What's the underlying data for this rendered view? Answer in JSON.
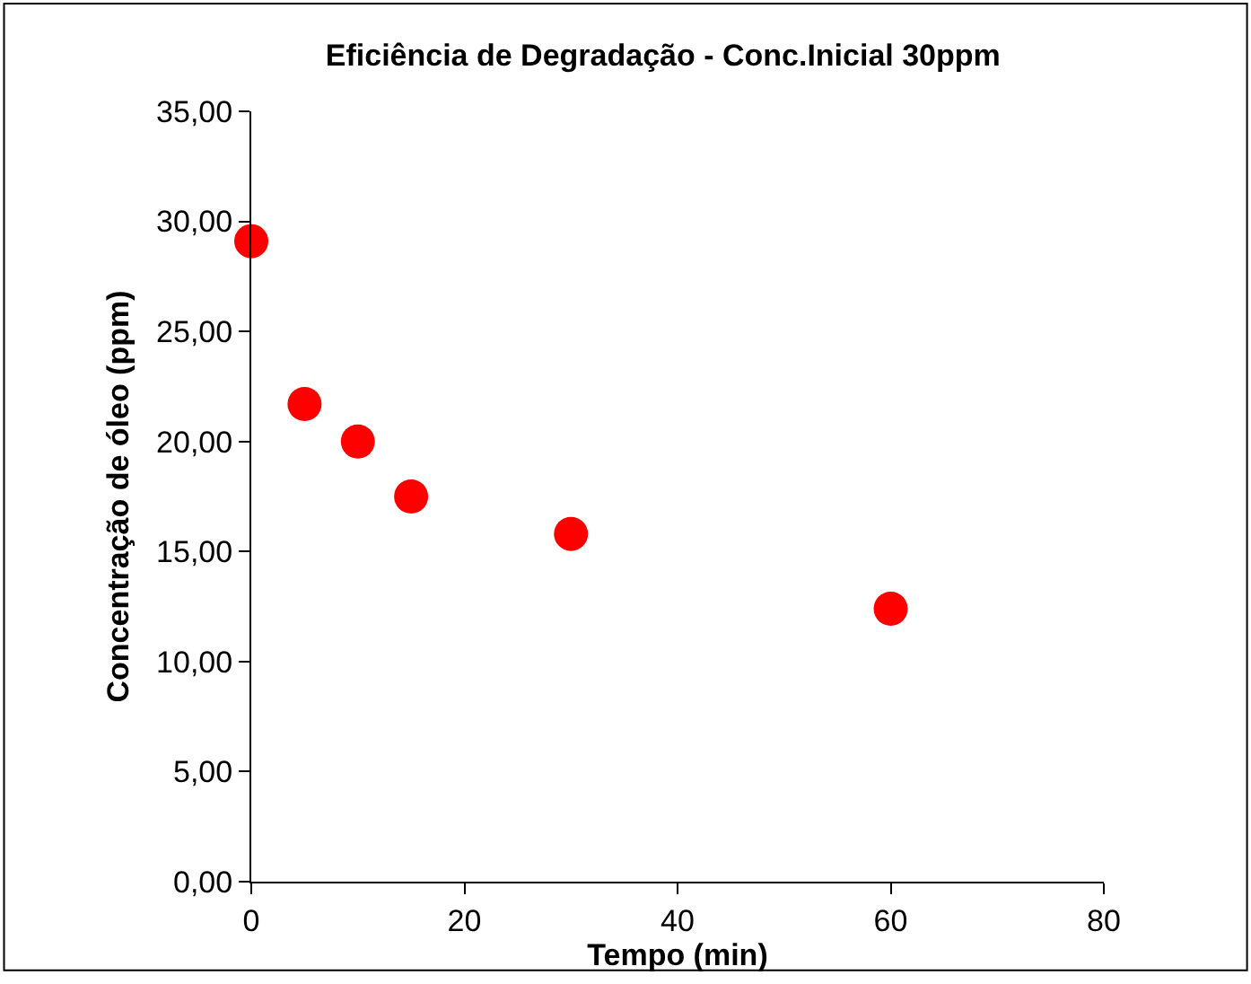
{
  "chart_data": {
    "type": "scatter",
    "title": "Eficiência de Degradação - Conc.Inicial 30ppm",
    "xlabel": "Tempo (min)",
    "ylabel": "Concentração de óleo (ppm)",
    "x": [
      0,
      5,
      10,
      15,
      30,
      60
    ],
    "series": [
      {
        "color": "#ff0000",
        "values": [
          29.1,
          21.7,
          20.0,
          17.5,
          15.8,
          12.4
        ]
      }
    ],
    "marker": "circle",
    "grid": false,
    "xlim": [
      0,
      80
    ],
    "xticks": [
      0,
      20,
      40,
      60,
      80
    ],
    "ylim": [
      0,
      35
    ],
    "yticks": [
      {
        "value": 0,
        "label": "0,00"
      },
      {
        "value": 5,
        "label": "5,00"
      },
      {
        "value": 10,
        "label": "10,00"
      },
      {
        "value": 15,
        "label": "15,00"
      },
      {
        "value": 20,
        "label": "20,00"
      },
      {
        "value": 25,
        "label": "25,00"
      },
      {
        "value": 30,
        "label": "30,00"
      },
      {
        "value": 35,
        "label": "35,00"
      }
    ]
  }
}
